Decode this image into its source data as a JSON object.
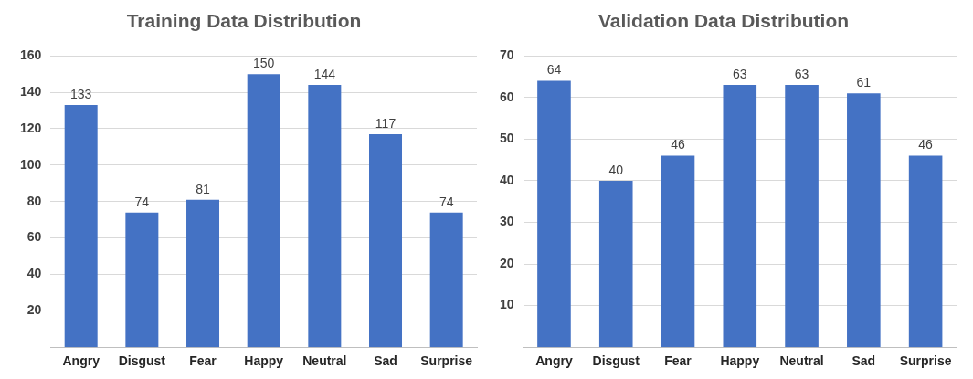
{
  "chart_data": [
    {
      "type": "bar",
      "title": "Training Data Distribution",
      "categories": [
        "Angry",
        "Disgust",
        "Fear",
        "Happy",
        "Neutral",
        "Sad",
        "Surprise"
      ],
      "values": [
        133,
        74,
        81,
        150,
        144,
        117,
        74
      ],
      "color": "#4472c4",
      "ylim": [
        0,
        160
      ],
      "yticks": [
        20,
        40,
        60,
        80,
        100,
        120,
        140,
        160
      ],
      "grid": "y",
      "data_labels": true
    },
    {
      "type": "bar",
      "title": "Validation Data Distribution",
      "categories": [
        "Angry",
        "Disgust",
        "Fear",
        "Happy",
        "Neutral",
        "Sad",
        "Surprise"
      ],
      "values": [
        64,
        40,
        46,
        63,
        63,
        61,
        46
      ],
      "color": "#4472c4",
      "ylim": [
        0,
        70
      ],
      "yticks": [
        10,
        20,
        30,
        40,
        50,
        60,
        70
      ],
      "grid": "y",
      "data_labels": true
    }
  ]
}
